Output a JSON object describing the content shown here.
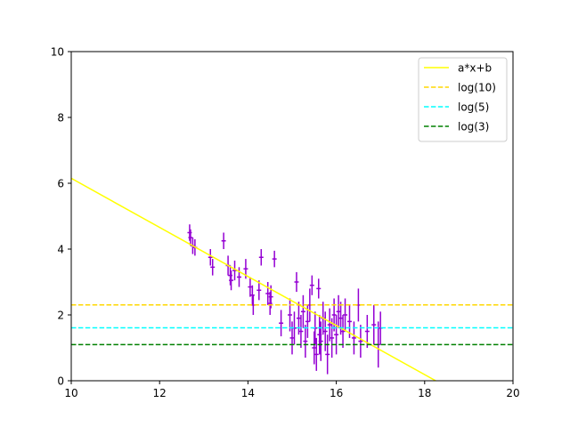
{
  "chart_data": {
    "type": "scatter",
    "xlim": [
      10,
      20
    ],
    "ylim": [
      0,
      10
    ],
    "x_ticks": [
      "10",
      "12",
      "14",
      "16",
      "18",
      "20"
    ],
    "y_ticks": [
      "0",
      "2",
      "4",
      "6",
      "8",
      "10"
    ],
    "grid": false,
    "legend_position": "top-right",
    "series": [
      {
        "name": "a*x+b",
        "kind": "line",
        "color": "#ffff00",
        "style": "solid",
        "points": [
          [
            10,
            6.15
          ],
          [
            18.25,
            0
          ]
        ]
      },
      {
        "name": "log(10)",
        "kind": "hline",
        "color": "#ffd700",
        "style": "dashed",
        "y": 2.3026
      },
      {
        "name": "log(5)",
        "kind": "hline",
        "color": "#00ffff",
        "style": "dashed",
        "y": 1.6094
      },
      {
        "name": "log(3)",
        "kind": "hline",
        "color": "#008000",
        "style": "dashed",
        "y": 1.0986
      },
      {
        "kind": "errorbar",
        "color": "#9400d3",
        "xerr": 0.05,
        "points": [
          [
            12.68,
            4.5,
            0.25
          ],
          [
            12.7,
            4.35,
            0.25
          ],
          [
            12.75,
            4.1,
            0.25
          ],
          [
            12.8,
            4.05,
            0.25
          ],
          [
            13.15,
            3.75,
            0.25
          ],
          [
            13.2,
            3.45,
            0.25
          ],
          [
            13.45,
            4.25,
            0.25
          ],
          [
            13.55,
            3.5,
            0.3
          ],
          [
            13.6,
            3.2,
            0.3
          ],
          [
            13.62,
            3.05,
            0.3
          ],
          [
            13.7,
            3.35,
            0.3
          ],
          [
            13.8,
            3.15,
            0.3
          ],
          [
            13.95,
            3.4,
            0.3
          ],
          [
            14.05,
            2.85,
            0.3
          ],
          [
            14.1,
            2.6,
            0.3
          ],
          [
            14.12,
            2.3,
            0.3
          ],
          [
            14.25,
            2.75,
            0.3
          ],
          [
            14.3,
            3.75,
            0.25
          ],
          [
            14.45,
            2.65,
            0.35
          ],
          [
            14.5,
            2.35,
            0.35
          ],
          [
            14.52,
            2.55,
            0.35
          ],
          [
            14.6,
            3.7,
            0.25
          ],
          [
            14.75,
            1.75,
            0.4
          ],
          [
            14.95,
            2.0,
            0.5
          ],
          [
            15.0,
            1.3,
            0.5
          ],
          [
            15.05,
            1.6,
            0.5
          ],
          [
            15.1,
            3.0,
            0.3
          ],
          [
            15.15,
            1.9,
            0.5
          ],
          [
            15.2,
            1.5,
            0.5
          ],
          [
            15.25,
            2.1,
            0.5
          ],
          [
            15.3,
            1.2,
            0.5
          ],
          [
            15.35,
            1.8,
            0.5
          ],
          [
            15.4,
            2.3,
            0.5
          ],
          [
            15.45,
            2.9,
            0.3
          ],
          [
            15.5,
            1.0,
            0.5
          ],
          [
            15.52,
            1.6,
            0.5
          ],
          [
            15.55,
            0.8,
            0.5
          ],
          [
            15.6,
            2.8,
            0.3
          ],
          [
            15.62,
            1.4,
            0.6
          ],
          [
            15.65,
            1.2,
            0.6
          ],
          [
            15.7,
            1.9,
            0.5
          ],
          [
            15.75,
            1.5,
            0.6
          ],
          [
            15.8,
            0.8,
            0.6
          ],
          [
            15.85,
            1.7,
            0.5
          ],
          [
            15.9,
            1.3,
            0.6
          ],
          [
            15.95,
            2.0,
            0.5
          ],
          [
            16.0,
            1.4,
            0.6
          ],
          [
            16.05,
            2.1,
            0.5
          ],
          [
            16.1,
            1.9,
            0.5
          ],
          [
            16.15,
            1.5,
            0.5
          ],
          [
            16.2,
            2.0,
            0.5
          ],
          [
            16.3,
            1.8,
            0.5
          ],
          [
            16.4,
            1.3,
            0.5
          ],
          [
            16.5,
            2.3,
            0.5
          ],
          [
            16.55,
            1.2,
            0.5
          ],
          [
            16.7,
            1.5,
            0.5
          ],
          [
            16.85,
            1.7,
            0.6
          ],
          [
            16.95,
            1.1,
            0.7
          ],
          [
            17.0,
            1.6,
            0.5
          ]
        ]
      }
    ]
  }
}
